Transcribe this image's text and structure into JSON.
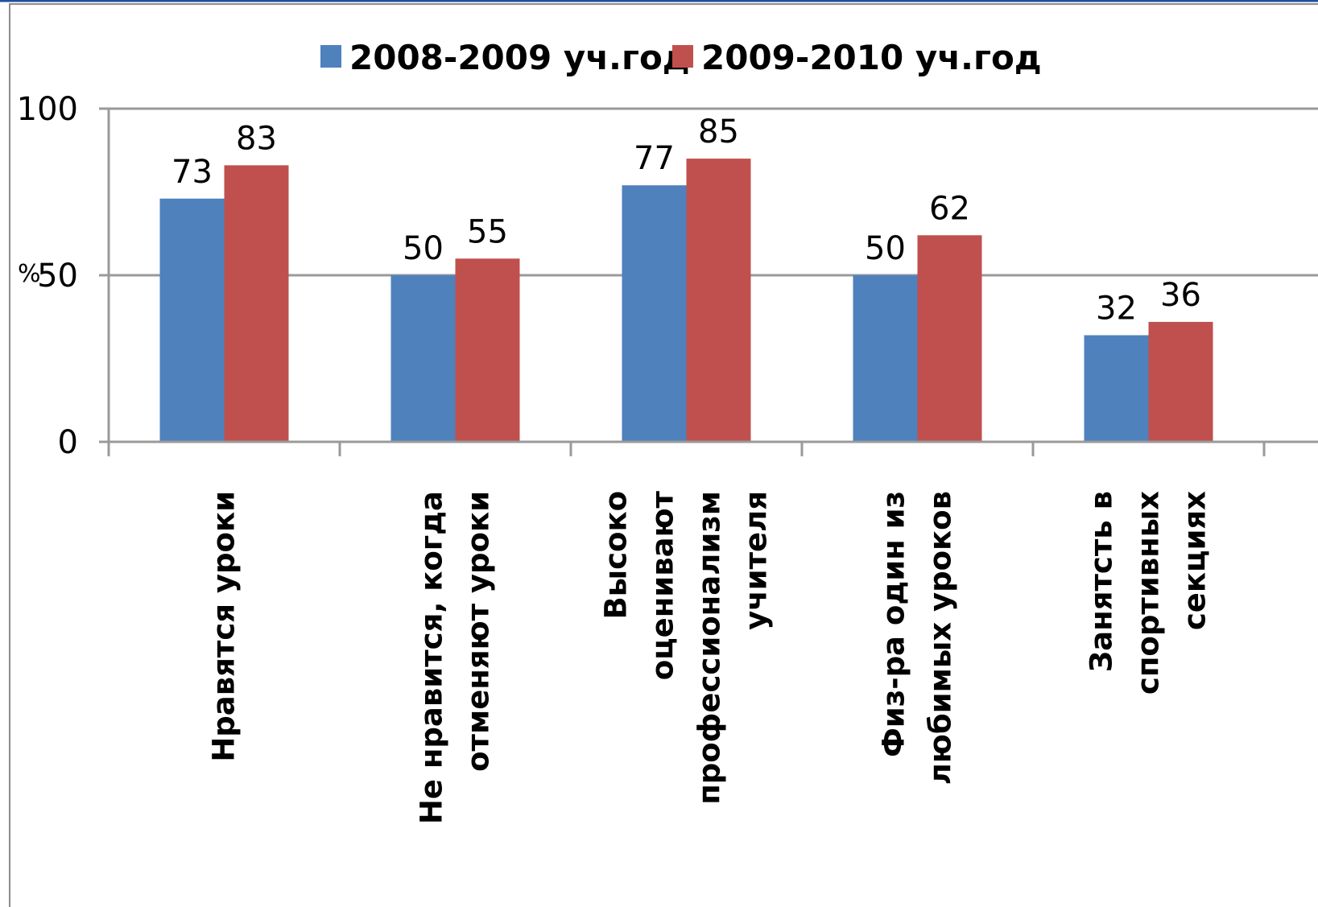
{
  "chart_data": {
    "type": "bar",
    "title": "",
    "xlabel": "",
    "ylabel": "%",
    "ylim": [
      0,
      100
    ],
    "yticks": [
      {
        "value": 0,
        "label": "0"
      },
      {
        "value": 50,
        "label": "50"
      },
      {
        "value": 100,
        "label": "100"
      }
    ],
    "grid": true,
    "legend_position": "top",
    "categories": [
      [
        "Нравятся уроки"
      ],
      [
        "Не нравится, когда",
        "отменяют уроки"
      ],
      [
        "Высоко",
        "оценивают",
        "профессионализм",
        "учителя"
      ],
      [
        "Физ-ра один из",
        "любимых уроков"
      ],
      [
        "Занятсть в",
        "спортивных",
        "секциях"
      ]
    ],
    "series": [
      {
        "name": "2008-2009 уч.год",
        "color": "#4f81bd",
        "values": [
          73,
          50,
          77,
          50,
          32
        ]
      },
      {
        "name": "2009-2010 уч.год",
        "color": "#c0504d",
        "values": [
          83,
          55,
          85,
          62,
          36
        ]
      }
    ]
  }
}
